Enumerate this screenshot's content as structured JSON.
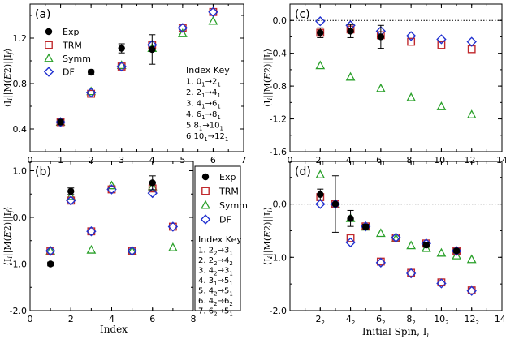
{
  "colors": {
    "Exp": "#000000",
    "TRM": "#c0282c",
    "Symm": "#2aa02a",
    "DF": "#2030d0"
  },
  "chart_data": [
    {
      "panel": "(a)",
      "type": "scatter",
      "ylabel": "⟨I_i||M(E2)||I_f⟩",
      "xlabel": "",
      "xlim": [
        0,
        7
      ],
      "ylim": [
        0.2,
        1.5
      ],
      "xticks": [
        "0",
        "1",
        "2",
        "3",
        "4",
        "5",
        "6",
        "7"
      ],
      "yticks": [
        "0.4",
        "0.8",
        "1.2"
      ],
      "series": [
        {
          "name": "Exp",
          "marker": "circle",
          "points": [
            {
              "x": 1,
              "y": 0.46,
              "err": 0.02
            },
            {
              "x": 2,
              "y": 0.9,
              "err": 0.02
            },
            {
              "x": 3,
              "y": 1.11,
              "err": 0.04
            },
            {
              "x": 4,
              "y": 1.1,
              "err": 0.13
            }
          ]
        },
        {
          "name": "TRM",
          "marker": "square",
          "points": [
            {
              "x": 1,
              "y": 0.46
            },
            {
              "x": 2,
              "y": 0.71
            },
            {
              "x": 3,
              "y": 0.95
            },
            {
              "x": 4,
              "y": 1.14
            },
            {
              "x": 5,
              "y": 1.29
            },
            {
              "x": 6,
              "y": 1.43
            }
          ]
        },
        {
          "name": "Symm",
          "marker": "triangle",
          "points": [
            {
              "x": 1,
              "y": 0.46
            },
            {
              "x": 2,
              "y": 0.73
            },
            {
              "x": 3,
              "y": 0.96
            },
            {
              "x": 4,
              "y": 1.11
            },
            {
              "x": 5,
              "y": 1.24
            },
            {
              "x": 6,
              "y": 1.35
            }
          ]
        },
        {
          "name": "DF",
          "marker": "diamond",
          "points": [
            {
              "x": 1,
              "y": 0.46
            },
            {
              "x": 2,
              "y": 0.72
            },
            {
              "x": 3,
              "y": 0.95
            },
            {
              "x": 4,
              "y": 1.14
            },
            {
              "x": 5,
              "y": 1.29
            },
            {
              "x": 6,
              "y": 1.43
            }
          ]
        }
      ],
      "legend": [
        "Exp",
        "TRM",
        "Symm",
        "DF"
      ],
      "index_key": {
        "title": "Index Key",
        "items": [
          {
            "n": "1.",
            "from": "0",
            "from_sub": "1",
            "to": "2",
            "to_sub": "1"
          },
          {
            "n": "2.",
            "from": "2",
            "from_sub": "1",
            "to": "4",
            "to_sub": "1"
          },
          {
            "n": "3.",
            "from": "4",
            "from_sub": "1",
            "to": "6",
            "to_sub": "1"
          },
          {
            "n": "4.",
            "from": "6",
            "from_sub": "1",
            "to": "8",
            "to_sub": "1"
          },
          {
            "n": "5",
            "from": "8",
            "from_sub": "1",
            "to": "10",
            "to_sub": "1"
          },
          {
            "n": "6",
            "from": "10",
            "from_sub": "1",
            "to": "12",
            "to_sub": "1"
          }
        ]
      }
    },
    {
      "panel": "(b)",
      "type": "scatter",
      "ylabel": "⟨I_i||M(E2)||I_f⟩",
      "xlabel": "Index",
      "xlim": [
        0,
        8
      ],
      "ylim": [
        -2.0,
        1.2
      ],
      "xticks": [
        "0",
        "2",
        "4",
        "6",
        "8"
      ],
      "yticks": [
        "-2.0",
        "-1.0",
        "0.0",
        "1.0"
      ],
      "series": [
        {
          "name": "Exp",
          "marker": "circle",
          "points": [
            {
              "x": 1,
              "y": -1.0,
              "err": 0.04
            },
            {
              "x": 2,
              "y": 0.56,
              "err": 0.07
            },
            {
              "x": 6,
              "y": 0.74,
              "err": 0.15
            }
          ]
        },
        {
          "name": "TRM",
          "marker": "square",
          "points": [
            {
              "x": 1,
              "y": -0.72
            },
            {
              "x": 2,
              "y": 0.36
            },
            {
              "x": 3,
              "y": -0.3
            },
            {
              "x": 4,
              "y": 0.6
            },
            {
              "x": 5,
              "y": -0.72
            },
            {
              "x": 6,
              "y": 0.62
            },
            {
              "x": 7,
              "y": -0.2
            }
          ]
        },
        {
          "name": "Symm",
          "marker": "triangle",
          "points": [
            {
              "x": 1,
              "y": -0.72
            },
            {
              "x": 2,
              "y": 0.45
            },
            {
              "x": 3,
              "y": -0.7
            },
            {
              "x": 4,
              "y": 0.68
            },
            {
              "x": 5,
              "y": -0.72
            },
            {
              "x": 6,
              "y": 0.66
            },
            {
              "x": 7,
              "y": -0.65
            }
          ]
        },
        {
          "name": "DF",
          "marker": "diamond",
          "points": [
            {
              "x": 1,
              "y": -0.72
            },
            {
              "x": 2,
              "y": 0.36
            },
            {
              "x": 3,
              "y": -0.3
            },
            {
              "x": 4,
              "y": 0.6
            },
            {
              "x": 5,
              "y": -0.72
            },
            {
              "x": 6,
              "y": 0.52
            },
            {
              "x": 7,
              "y": -0.2
            }
          ]
        }
      ],
      "legend": [
        "Exp",
        "TRM",
        "Symm",
        "DF"
      ],
      "index_key": {
        "title": "Index Key",
        "items": [
          {
            "n": "1.",
            "from": "2",
            "from_sub": "2",
            "to": "3",
            "to_sub": "1"
          },
          {
            "n": "2.",
            "from": "2",
            "from_sub": "2",
            "to": "4",
            "to_sub": "2"
          },
          {
            "n": "3.",
            "from": "4",
            "from_sub": "2",
            "to": "3",
            "to_sub": "1"
          },
          {
            "n": "4.",
            "from": "3",
            "from_sub": "1",
            "to": "5",
            "to_sub": "1"
          },
          {
            "n": "5.",
            "from": "4",
            "from_sub": "2",
            "to": "5",
            "to_sub": "1"
          },
          {
            "n": "6.",
            "from": "4",
            "from_sub": "2",
            "to": "6",
            "to_sub": "2"
          },
          {
            "n": "7.",
            "from": "6",
            "from_sub": "2",
            "to": "5",
            "to_sub": "1"
          }
        ]
      }
    },
    {
      "panel": "(c)",
      "type": "scatter",
      "ylabel": "⟨I_i||M(E2)||I_i⟩",
      "xlabel": "",
      "xlim": [
        0,
        14
      ],
      "ylim": [
        -1.6,
        0.2
      ],
      "xticks": [
        {
          "v": 0,
          "t": "0",
          "s": ""
        },
        {
          "v": 2,
          "t": "2",
          "s": "1"
        },
        {
          "v": 4,
          "t": "4",
          "s": "1"
        },
        {
          "v": 6,
          "t": "6",
          "s": "1"
        },
        {
          "v": 8,
          "t": "8",
          "s": "1"
        },
        {
          "v": 10,
          "t": "10",
          "s": "1"
        },
        {
          "v": 12,
          "t": "12",
          "s": "1"
        },
        {
          "v": 14,
          "t": "14",
          "s": ""
        }
      ],
      "yticks": [
        "-1.6",
        "-1.2",
        "-0.8",
        "-0.4",
        "0.0"
      ],
      "series": [
        {
          "name": "Exp",
          "marker": "circle",
          "points": [
            {
              "x": 2,
              "y": -0.15,
              "err": 0.06
            },
            {
              "x": 4,
              "y": -0.13,
              "err": 0.08
            },
            {
              "x": 6,
              "y": -0.2,
              "err": 0.14
            }
          ]
        },
        {
          "name": "TRM",
          "marker": "square",
          "points": [
            {
              "x": 2,
              "y": -0.15
            },
            {
              "x": 4,
              "y": -0.11
            },
            {
              "x": 6,
              "y": -0.18
            },
            {
              "x": 8,
              "y": -0.26
            },
            {
              "x": 10,
              "y": -0.3
            },
            {
              "x": 12,
              "y": -0.35
            }
          ]
        },
        {
          "name": "Symm",
          "marker": "triangle",
          "points": [
            {
              "x": 2,
              "y": -0.55
            },
            {
              "x": 4,
              "y": -0.69
            },
            {
              "x": 6,
              "y": -0.83
            },
            {
              "x": 8,
              "y": -0.94
            },
            {
              "x": 10,
              "y": -1.05
            },
            {
              "x": 12,
              "y": -1.15
            }
          ]
        },
        {
          "name": "DF",
          "marker": "diamond",
          "points": [
            {
              "x": 2,
              "y": -0.01
            },
            {
              "x": 4,
              "y": -0.06
            },
            {
              "x": 6,
              "y": -0.13
            },
            {
              "x": 8,
              "y": -0.19
            },
            {
              "x": 10,
              "y": -0.23
            },
            {
              "x": 12,
              "y": -0.26
            }
          ]
        }
      ]
    },
    {
      "panel": "(d)",
      "type": "scatter",
      "ylabel": "⟨I_i||M(E2)||I_i⟩",
      "xlabel": "Initial Spin, I_i",
      "xlim": [
        0,
        14
      ],
      "ylim": [
        -2.0,
        0.8
      ],
      "xticks": [
        {
          "v": 2,
          "t": "2",
          "s": "2"
        },
        {
          "v": 4,
          "t": "4",
          "s": "2"
        },
        {
          "v": 6,
          "t": "6",
          "s": "2"
        },
        {
          "v": 8,
          "t": "8",
          "s": "2"
        },
        {
          "v": 10,
          "t": "10",
          "s": "2"
        },
        {
          "v": 12,
          "t": "12",
          "s": "2"
        },
        {
          "v": 14,
          "t": "14",
          "s": "2"
        }
      ],
      "yticks": [
        "-2.0",
        "-1.0",
        "0.0"
      ],
      "series": [
        {
          "name": "Exp",
          "marker": "circle",
          "points": [
            {
              "x": 2,
              "y": 0.18,
              "err": 0.1
            },
            {
              "x": 3,
              "y": 0.0,
              "err": 0.53
            },
            {
              "x": 4,
              "y": -0.27,
              "err": 0.15
            },
            {
              "x": 5,
              "y": -0.43,
              "err": 0.05
            },
            {
              "x": 9,
              "y": -0.77,
              "err": 0.04
            },
            {
              "x": 11,
              "y": -0.88,
              "err": 0.04
            }
          ]
        },
        {
          "name": "TRM",
          "marker": "square",
          "points": [
            {
              "x": 2,
              "y": 0.13
            },
            {
              "x": 3,
              "y": 0.0
            },
            {
              "x": 4,
              "y": -0.64
            },
            {
              "x": 5,
              "y": -0.42
            },
            {
              "x": 6,
              "y": -1.08
            },
            {
              "x": 7,
              "y": -0.63
            },
            {
              "x": 8,
              "y": -1.29
            },
            {
              "x": 9,
              "y": -0.74
            },
            {
              "x": 10,
              "y": -1.47
            },
            {
              "x": 11,
              "y": -0.88
            },
            {
              "x": 12,
              "y": -1.62
            }
          ]
        },
        {
          "name": "Symm",
          "marker": "triangle",
          "points": [
            {
              "x": 2,
              "y": 0.55
            },
            {
              "x": 3,
              "y": 0.0
            },
            {
              "x": 4,
              "y": -0.27
            },
            {
              "x": 5,
              "y": -0.43
            },
            {
              "x": 6,
              "y": -0.55
            },
            {
              "x": 7,
              "y": -0.65
            },
            {
              "x": 8,
              "y": -0.78
            },
            {
              "x": 9,
              "y": -0.83
            },
            {
              "x": 10,
              "y": -0.92
            },
            {
              "x": 11,
              "y": -0.97
            },
            {
              "x": 12,
              "y": -1.04
            }
          ]
        },
        {
          "name": "DF",
          "marker": "diamond",
          "points": [
            {
              "x": 2,
              "y": 0.0
            },
            {
              "x": 3,
              "y": 0.0
            },
            {
              "x": 4,
              "y": -0.72
            },
            {
              "x": 5,
              "y": -0.42
            },
            {
              "x": 6,
              "y": -1.1
            },
            {
              "x": 7,
              "y": -0.63
            },
            {
              "x": 8,
              "y": -1.3
            },
            {
              "x": 9,
              "y": -0.74
            },
            {
              "x": 10,
              "y": -1.49
            },
            {
              "x": 11,
              "y": -0.88
            },
            {
              "x": 12,
              "y": -1.63
            }
          ]
        }
      ]
    }
  ]
}
